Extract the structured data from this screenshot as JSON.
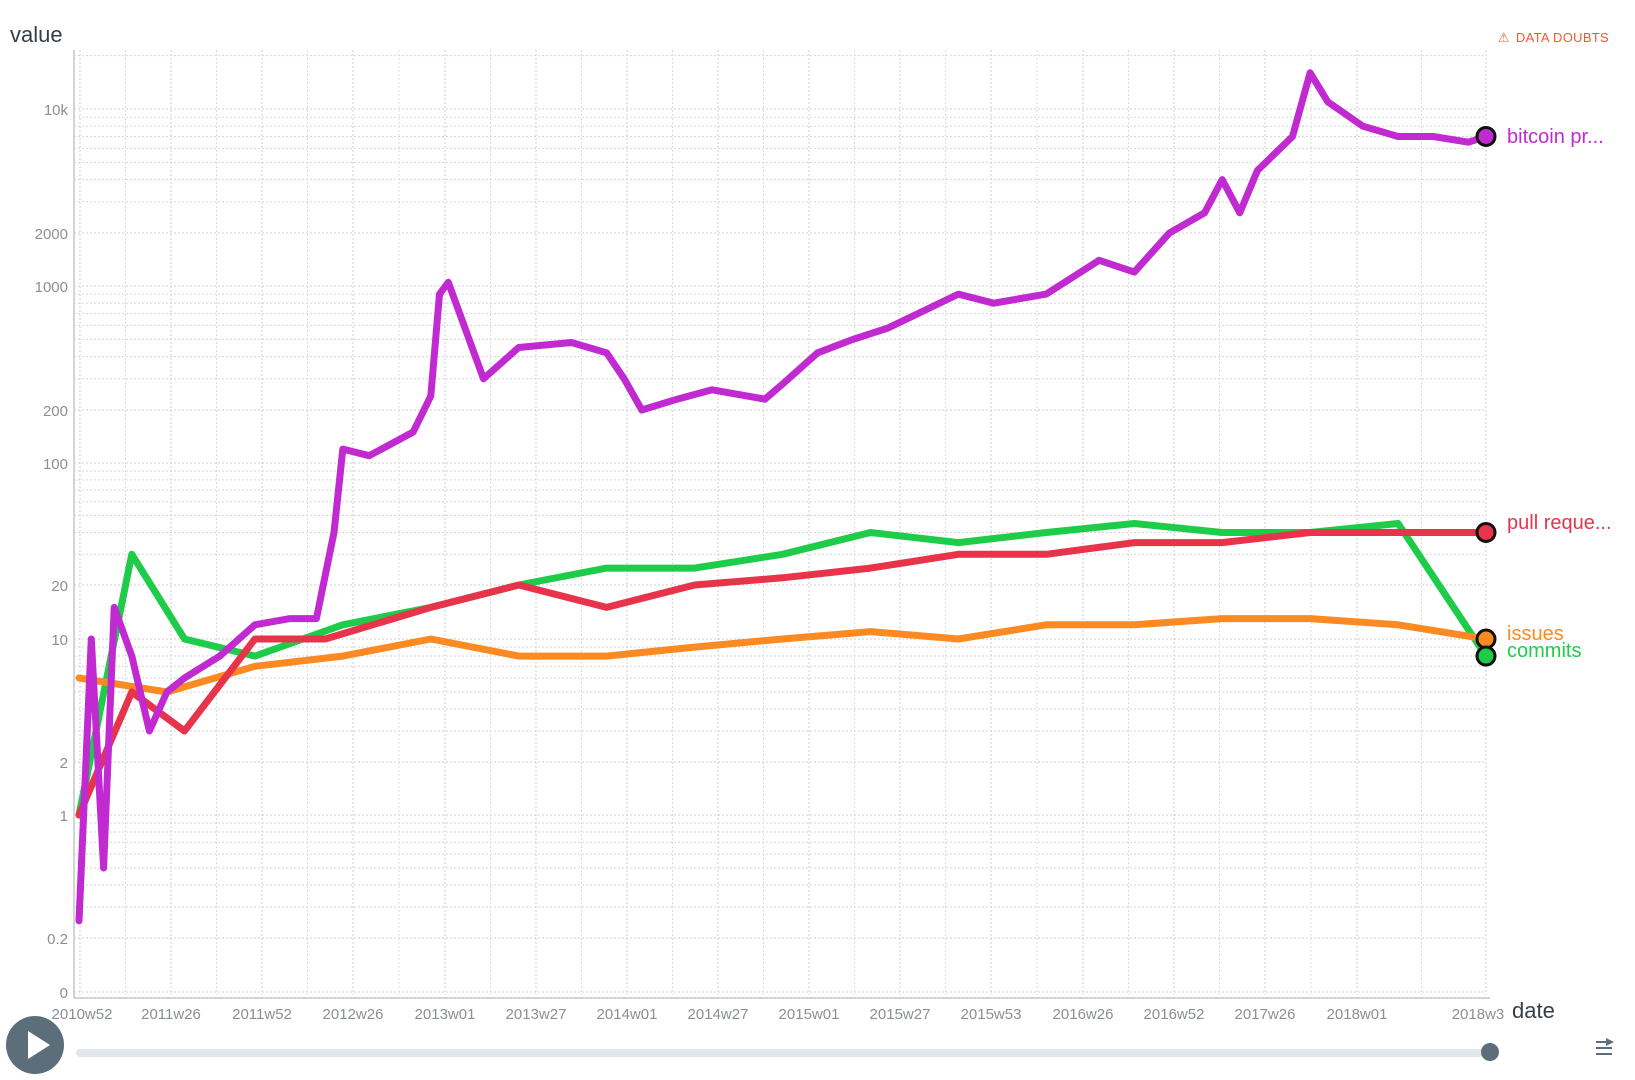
{
  "app": {
    "warning_label": "DATA DOUBTS",
    "warning_icon": "warning-triangle-icon"
  },
  "controls": {
    "play_icon": "play-icon",
    "menu_icon": "menu-icon",
    "slider_value_fraction": 1.0
  },
  "chart_data": {
    "type": "line",
    "xlabel": "date",
    "ylabel": "value",
    "yscale": "symlog",
    "grid": true,
    "x_ticks": [
      "2010w52",
      "2011w26",
      "2011w52",
      "2012w26",
      "2013w01",
      "2013w27",
      "2014w01",
      "2014w27",
      "2015w01",
      "2015w27",
      "2015w53",
      "2016w26",
      "2016w52",
      "2017w26",
      "2018w01",
      "2018w3"
    ],
    "y_ticks": [
      "0",
      "0.2",
      "1",
      "2",
      "10",
      "20",
      "100",
      "200",
      "1000",
      "2000",
      "10k"
    ],
    "series": [
      {
        "name": "bitcoin pr...",
        "color": "#c02ad0",
        "points": [
          [
            0,
            0.25
          ],
          [
            0.07,
            10
          ],
          [
            0.14,
            0.5
          ],
          [
            0.2,
            15
          ],
          [
            0.3,
            8
          ],
          [
            0.4,
            3
          ],
          [
            0.5,
            5
          ],
          [
            0.6,
            6
          ],
          [
            0.8,
            8
          ],
          [
            1.0,
            12
          ],
          [
            1.2,
            13
          ],
          [
            1.35,
            13
          ],
          [
            1.45,
            40
          ],
          [
            1.5,
            120
          ],
          [
            1.65,
            110
          ],
          [
            1.9,
            150
          ],
          [
            2.0,
            240
          ],
          [
            2.05,
            900
          ],
          [
            2.1,
            1050
          ],
          [
            2.3,
            300
          ],
          [
            2.5,
            450
          ],
          [
            2.8,
            480
          ],
          [
            3.0,
            420
          ],
          [
            3.1,
            300
          ],
          [
            3.2,
            200
          ],
          [
            3.4,
            230
          ],
          [
            3.6,
            260
          ],
          [
            3.9,
            230
          ],
          [
            4.0,
            280
          ],
          [
            4.2,
            420
          ],
          [
            4.4,
            500
          ],
          [
            4.6,
            580
          ],
          [
            5.0,
            900
          ],
          [
            5.2,
            800
          ],
          [
            5.5,
            900
          ],
          [
            5.8,
            1400
          ],
          [
            6.0,
            1200
          ],
          [
            6.2,
            2000
          ],
          [
            6.4,
            2600
          ],
          [
            6.5,
            4000
          ],
          [
            6.6,
            2600
          ],
          [
            6.7,
            4500
          ],
          [
            6.9,
            7000
          ],
          [
            7.0,
            16000
          ],
          [
            7.1,
            11000
          ],
          [
            7.3,
            8000
          ],
          [
            7.5,
            7000
          ],
          [
            7.7,
            7000
          ],
          [
            7.9,
            6500
          ],
          [
            8.0,
            7000
          ]
        ]
      },
      {
        "name": "pull reque...",
        "color": "#e8344a",
        "points": [
          [
            0,
            1
          ],
          [
            0.3,
            5
          ],
          [
            0.6,
            3
          ],
          [
            1.0,
            10
          ],
          [
            1.4,
            10
          ],
          [
            2.0,
            15
          ],
          [
            2.5,
            20
          ],
          [
            3.0,
            15
          ],
          [
            3.5,
            20
          ],
          [
            4.0,
            22
          ],
          [
            4.5,
            25
          ],
          [
            5.0,
            30
          ],
          [
            5.5,
            30
          ],
          [
            6.0,
            35
          ],
          [
            6.5,
            35
          ],
          [
            7.0,
            40
          ],
          [
            7.5,
            40
          ],
          [
            8.0,
            40
          ]
        ]
      },
      {
        "name": "issues",
        "color": "#fb8a22",
        "points": [
          [
            0,
            6
          ],
          [
            0.5,
            5
          ],
          [
            1.0,
            7
          ],
          [
            1.5,
            8
          ],
          [
            2.0,
            10
          ],
          [
            2.5,
            8
          ],
          [
            3.0,
            8
          ],
          [
            3.5,
            9
          ],
          [
            4.0,
            10
          ],
          [
            4.5,
            11
          ],
          [
            5.0,
            10
          ],
          [
            5.5,
            12
          ],
          [
            6.0,
            12
          ],
          [
            6.5,
            13
          ],
          [
            7.0,
            13
          ],
          [
            7.5,
            12
          ],
          [
            8.0,
            10
          ]
        ]
      },
      {
        "name": "commits",
        "color": "#1fcc4a",
        "points": [
          [
            0,
            1
          ],
          [
            0.3,
            30
          ],
          [
            0.6,
            10
          ],
          [
            1.0,
            8
          ],
          [
            1.5,
            12
          ],
          [
            2.0,
            15
          ],
          [
            2.5,
            20
          ],
          [
            3.0,
            25
          ],
          [
            3.5,
            25
          ],
          [
            4.0,
            30
          ],
          [
            4.5,
            40
          ],
          [
            5.0,
            35
          ],
          [
            5.5,
            40
          ],
          [
            6.0,
            45
          ],
          [
            6.5,
            40
          ],
          [
            7.0,
            40
          ],
          [
            7.5,
            45
          ],
          [
            8.0,
            8
          ]
        ]
      }
    ]
  }
}
